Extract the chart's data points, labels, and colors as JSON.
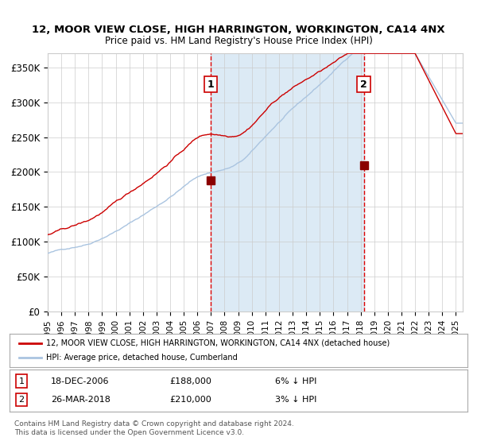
{
  "title": "12, MOOR VIEW CLOSE, HIGH HARRINGTON, WORKINGTON, CA14 4NX",
  "subtitle": "Price paid vs. HM Land Registry's House Price Index (HPI)",
  "ylabel": "",
  "xlim_start": 1995.0,
  "xlim_end": 2025.5,
  "ylim": [
    0,
    370000
  ],
  "yticks": [
    0,
    50000,
    100000,
    150000,
    200000,
    250000,
    300000,
    350000
  ],
  "ytick_labels": [
    "£0",
    "£50K",
    "£100K",
    "£150K",
    "£200K",
    "£250K",
    "£300K",
    "£350K"
  ],
  "transaction1": {
    "date_num": 2006.96,
    "price": 188000,
    "label": "1",
    "date_str": "18-DEC-2006",
    "pct": "6%"
  },
  "transaction2": {
    "date_num": 2018.23,
    "price": 210000,
    "label": "2",
    "date_str": "26-MAR-2018",
    "pct": "3%"
  },
  "hpi_line_color": "#aac4e0",
  "price_line_color": "#cc0000",
  "marker_color": "#8b0000",
  "shading_color": "#dceaf5",
  "vline_color": "#dd0000",
  "grid_color": "#cccccc",
  "background_color": "#ffffff",
  "legend_entry1": "12, MOOR VIEW CLOSE, HIGH HARRINGTON, WORKINGTON, CA14 4NX (detached house)",
  "legend_entry2": "HPI: Average price, detached house, Cumberland",
  "footnote": "Contains HM Land Registry data © Crown copyright and database right 2024.\nThis data is licensed under the Open Government Licence v3.0.",
  "xtick_years": [
    1995,
    1996,
    1997,
    1998,
    1999,
    2000,
    2001,
    2002,
    2003,
    2004,
    2005,
    2006,
    2007,
    2008,
    2009,
    2010,
    2011,
    2012,
    2013,
    2014,
    2015,
    2016,
    2017,
    2018,
    2019,
    2020,
    2021,
    2022,
    2023,
    2024,
    2025
  ]
}
